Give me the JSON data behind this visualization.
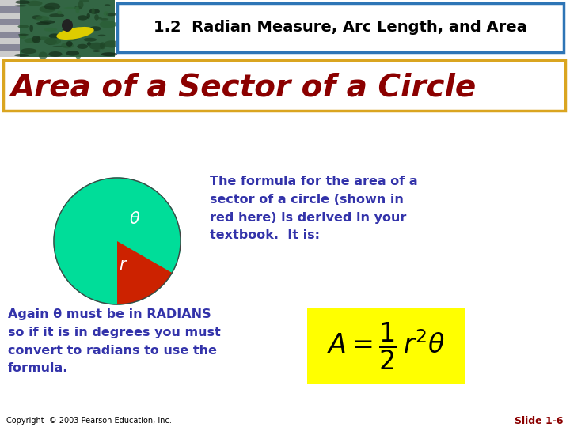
{
  "title_text": "1.2  Radian Measure, Arc Length, and Area",
  "slide_title": "Area of a Sector of a Circle",
  "body_text_1": "The formula for the area of a\nsector of a circle (shown in\nred here) is derived in your\ntextbook.  It is:",
  "body_text_2": "Again θ must be in RADIANS\nso if it is in degrees you must\nconvert to radians to use the\nformula.",
  "copyright": "Copyright  © 2003 Pearson Education, Inc.",
  "slide_num": "Slide 1-6",
  "bg_color": "#ffffff",
  "title_box_border": "#2E75B6",
  "section_title_color": "#8B0000",
  "section_title_border": "#DAA520",
  "body_text_color": "#3333AA",
  "formula_bg": "#FFFF00",
  "circle_color": "#00DD99",
  "sector_color": "#CC2200",
  "theta_label_color": "#ffffff",
  "r_label_color": "#ffffff",
  "slide_num_color": "#8B0000",
  "header_stripe_light": "#CCCCCC",
  "header_stripe_dark": "#888899",
  "header_photo_bg": "#336644"
}
